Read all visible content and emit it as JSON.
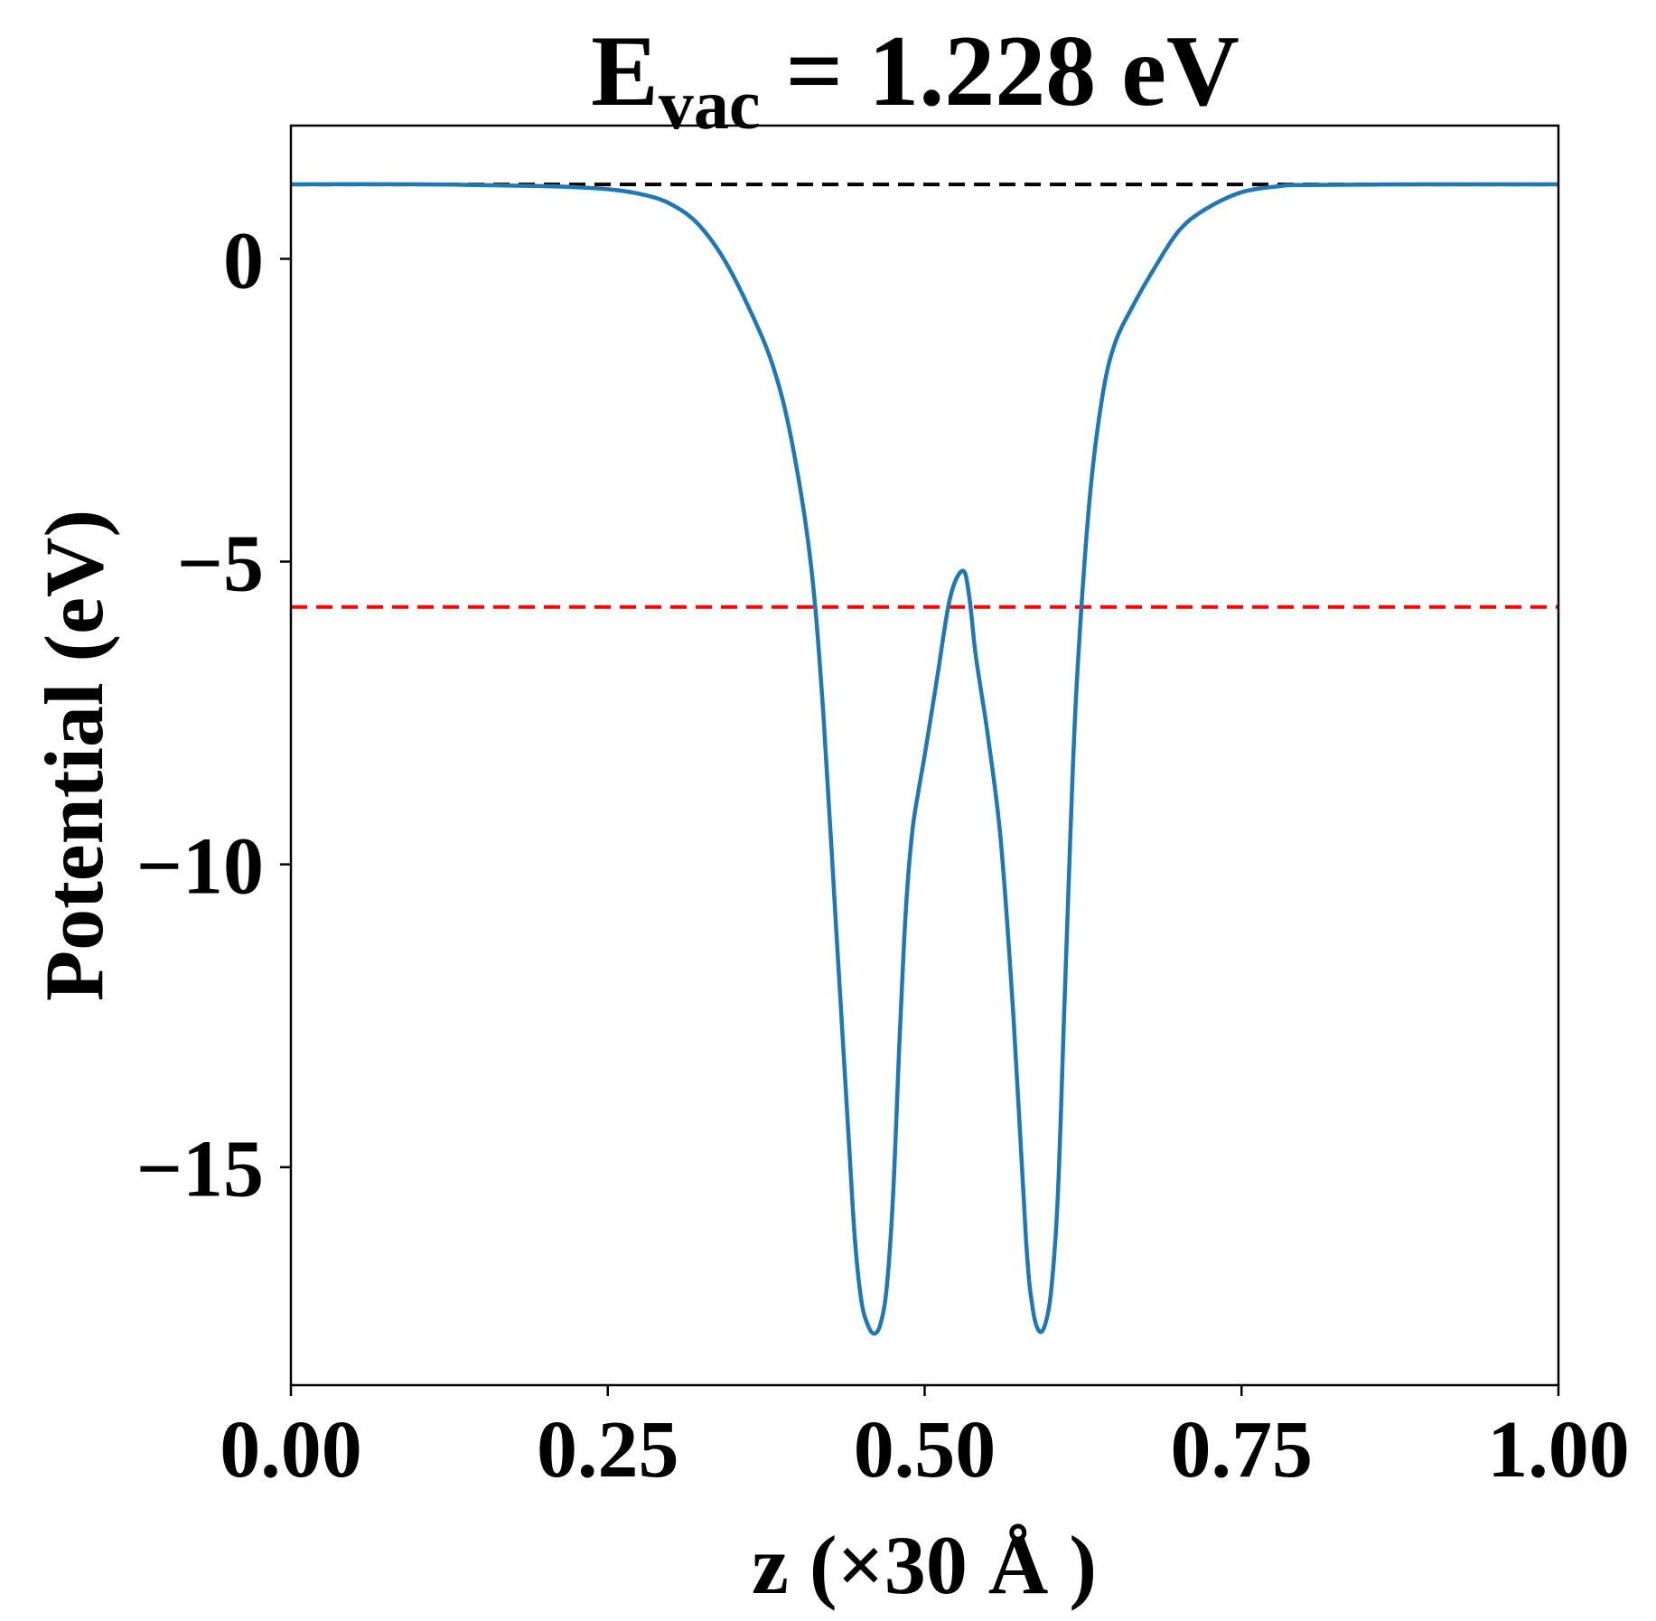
{
  "chart_data": {
    "type": "line",
    "title": {
      "main": "E",
      "subscript": "vac",
      "rest": " = 1.228 eV"
    },
    "xlabel": "z (×30 Å )",
    "ylabel": "Potential (eV)",
    "xlim": [
      0,
      1
    ],
    "ylim": [
      -18.6,
      2.2
    ],
    "x_ticks": [
      0.0,
      0.25,
      0.5,
      0.75,
      1.0
    ],
    "x_tick_labels": [
      "0.00",
      "0.25",
      "0.50",
      "0.75",
      "1.00"
    ],
    "y_ticks": [
      0,
      -5,
      -10,
      -15
    ],
    "y_tick_labels": [
      "0",
      "−5",
      "−10",
      "−15"
    ],
    "grid": false,
    "reference_lines": [
      {
        "y": 1.228,
        "color": "#000000",
        "style": "dashed"
      },
      {
        "y": -5.75,
        "color": "#ff0000",
        "style": "dashed"
      }
    ],
    "series": [
      {
        "color": "#1f77b4",
        "x": [
          0.0,
          0.1,
          0.2,
          0.25,
          0.28,
          0.3,
          0.32,
          0.34,
          0.36,
          0.38,
          0.395,
          0.41,
          0.42,
          0.43,
          0.44,
          0.445,
          0.45,
          0.455,
          0.46,
          0.465,
          0.47,
          0.475,
          0.48,
          0.485,
          0.49,
          0.495,
          0.5,
          0.51,
          0.52,
          0.53,
          0.535,
          0.54,
          0.545,
          0.55,
          0.56,
          0.57,
          0.58,
          0.585,
          0.59,
          0.595,
          0.6,
          0.605,
          0.61,
          0.615,
          0.62,
          0.63,
          0.64,
          0.65,
          0.665,
          0.68,
          0.7,
          0.72,
          0.75,
          0.78,
          0.8,
          0.9,
          1.0
        ],
        "y": [
          1.23,
          1.23,
          1.2,
          1.15,
          1.05,
          0.9,
          0.6,
          0.05,
          -0.75,
          -1.75,
          -3.0,
          -5.0,
          -7.5,
          -11.0,
          -14.5,
          -16.2,
          -17.2,
          -17.6,
          -17.75,
          -17.6,
          -17.0,
          -15.5,
          -13.0,
          -10.8,
          -9.5,
          -8.8,
          -8.2,
          -6.9,
          -5.6,
          -5.15,
          -5.55,
          -6.5,
          -7.2,
          -7.9,
          -9.6,
          -12.5,
          -16.2,
          -17.3,
          -17.7,
          -17.6,
          -17.0,
          -15.5,
          -12.5,
          -9.5,
          -7.0,
          -4.0,
          -2.3,
          -1.4,
          -0.75,
          -0.2,
          0.45,
          0.8,
          1.1,
          1.2,
          1.22,
          1.23,
          1.23
        ]
      }
    ]
  }
}
